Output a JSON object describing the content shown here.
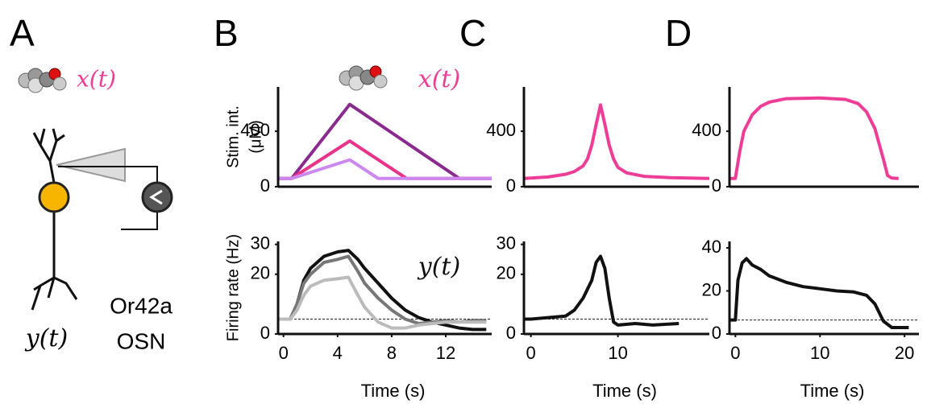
{
  "panel_a": {
    "letter": "A",
    "input": "x(t)",
    "output": "y(t)",
    "neuron": [
      "Or42a",
      "OSN"
    ]
  },
  "chart_data": [
    {
      "type": "line",
      "panel": "B",
      "annotation": "x(t)",
      "ylabel": [
        "Stim. int.",
        "(μM)"
      ],
      "x": [
        -0.4,
        0.6,
        4.9,
        7,
        9.1,
        13,
        15.4
      ],
      "xlim": [
        -0.4,
        15.4
      ],
      "ylim": [
        0,
        720
      ],
      "yticks": [
        0,
        400
      ],
      "series": [
        {
          "color": "#8b2a8e",
          "values": [
            60,
            60,
            594,
            456,
            317,
            60,
            60
          ]
        },
        {
          "color": "#e8338a",
          "values": [
            60,
            60,
            330,
            195,
            60,
            60,
            60
          ]
        },
        {
          "color": "#cc88ee",
          "values": [
            60,
            60,
            194,
            60,
            60,
            60,
            60
          ]
        }
      ]
    },
    {
      "type": "line",
      "annotation": "y(t)",
      "ylabel": [
        "Firing rate (Hz)"
      ],
      "xlabel": "Time (s)",
      "x": [
        -0.4,
        0,
        0.5,
        1,
        1.5,
        2,
        3,
        4,
        4.8,
        5.5,
        6,
        7,
        8,
        9,
        10,
        11,
        12,
        13,
        14,
        15
      ],
      "xlim": [
        -0.4,
        15.4
      ],
      "xticks": [
        0,
        4,
        8,
        12
      ],
      "ylim": [
        0,
        31
      ],
      "yticks": [
        0,
        20,
        30
      ],
      "baseline": 5,
      "series": [
        {
          "color": "#111111",
          "values": [
            5,
            5,
            5,
            10,
            18,
            22,
            26,
            27.5,
            28,
            25,
            22,
            17,
            12,
            8,
            5.5,
            4,
            3,
            2,
            1.5,
            1.5
          ]
        },
        {
          "color": "#777777",
          "values": [
            5,
            5,
            5,
            10,
            17,
            20,
            24,
            25,
            26,
            21,
            17,
            12,
            8,
            5,
            3.5,
            4,
            4.5,
            4,
            4.5,
            4.5
          ]
        },
        {
          "color": "#bbbbbb",
          "values": [
            5,
            5,
            5,
            8,
            13,
            16,
            18,
            18.5,
            19,
            13,
            9,
            4,
            2,
            2,
            3,
            3.5,
            4,
            4,
            4,
            4
          ]
        }
      ]
    },
    {
      "type": "line",
      "panel": "C",
      "x": [
        -0.8,
        0,
        2,
        4,
        5,
        6,
        6.5,
        7,
        7.5,
        8,
        8.5,
        9,
        9.5,
        10,
        11,
        13,
        16,
        20.5
      ],
      "xlim": [
        -0.8,
        20.5
      ],
      "ylim": [
        0,
        720
      ],
      "yticks": [
        0,
        400
      ],
      "series": [
        {
          "color": "#ee3d96",
          "values": [
            60,
            62,
            70,
            90,
            110,
            150,
            200,
            300,
            450,
            590,
            450,
            300,
            200,
            140,
            100,
            75,
            65,
            60
          ]
        }
      ]
    },
    {
      "type": "line",
      "xlabel": "Time (s)",
      "x": [
        -0.8,
        0,
        2,
        4,
        5,
        6,
        7,
        7.5,
        8,
        8.5,
        9,
        9.5,
        10,
        12,
        14,
        17
      ],
      "xlim": [
        -0.8,
        20.5
      ],
      "xticks": [
        0,
        10
      ],
      "ylim": [
        0,
        31
      ],
      "yticks": [
        0,
        20,
        30
      ],
      "baseline": 5,
      "series": [
        {
          "color": "#111111",
          "values": [
            5,
            5,
            5.5,
            6,
            8,
            12,
            18,
            24,
            26,
            22,
            12,
            4,
            3,
            3.5,
            3,
            3.5
          ]
        }
      ]
    },
    {
      "type": "line",
      "panel": "D",
      "x": [
        -0.7,
        0,
        0.5,
        1,
        2,
        3,
        4,
        6,
        10,
        13,
        14.5,
        15.5,
        16.5,
        17.5,
        18,
        18.5,
        19.3
      ],
      "xlim": [
        -0.7,
        21.7
      ],
      "ylim": [
        0,
        720
      ],
      "yticks": [
        0,
        400
      ],
      "series": [
        {
          "color": "#ee3d96",
          "values": [
            60,
            60,
            250,
            400,
            520,
            580,
            610,
            635,
            640,
            630,
            600,
            540,
            420,
            200,
            80,
            62,
            60
          ]
        }
      ]
    },
    {
      "type": "line",
      "xlabel": "Time (s)",
      "x": [
        -0.7,
        0,
        0.3,
        0.8,
        1.3,
        2,
        3,
        4,
        6,
        8,
        10,
        12,
        14,
        15.5,
        16.5,
        17.5,
        18.5,
        20.5
      ],
      "xlim": [
        -0.7,
        21.7
      ],
      "xticks": [
        0,
        10,
        20
      ],
      "ylim": [
        0,
        43
      ],
      "yticks": [
        0,
        20,
        40
      ],
      "baseline": 6.5,
      "series": [
        {
          "color": "#111111",
          "values": [
            6.5,
            6.5,
            25,
            33,
            35,
            32,
            30,
            27,
            24,
            22,
            21,
            20,
            19.5,
            18,
            14,
            6,
            3,
            3
          ]
        }
      ]
    }
  ]
}
